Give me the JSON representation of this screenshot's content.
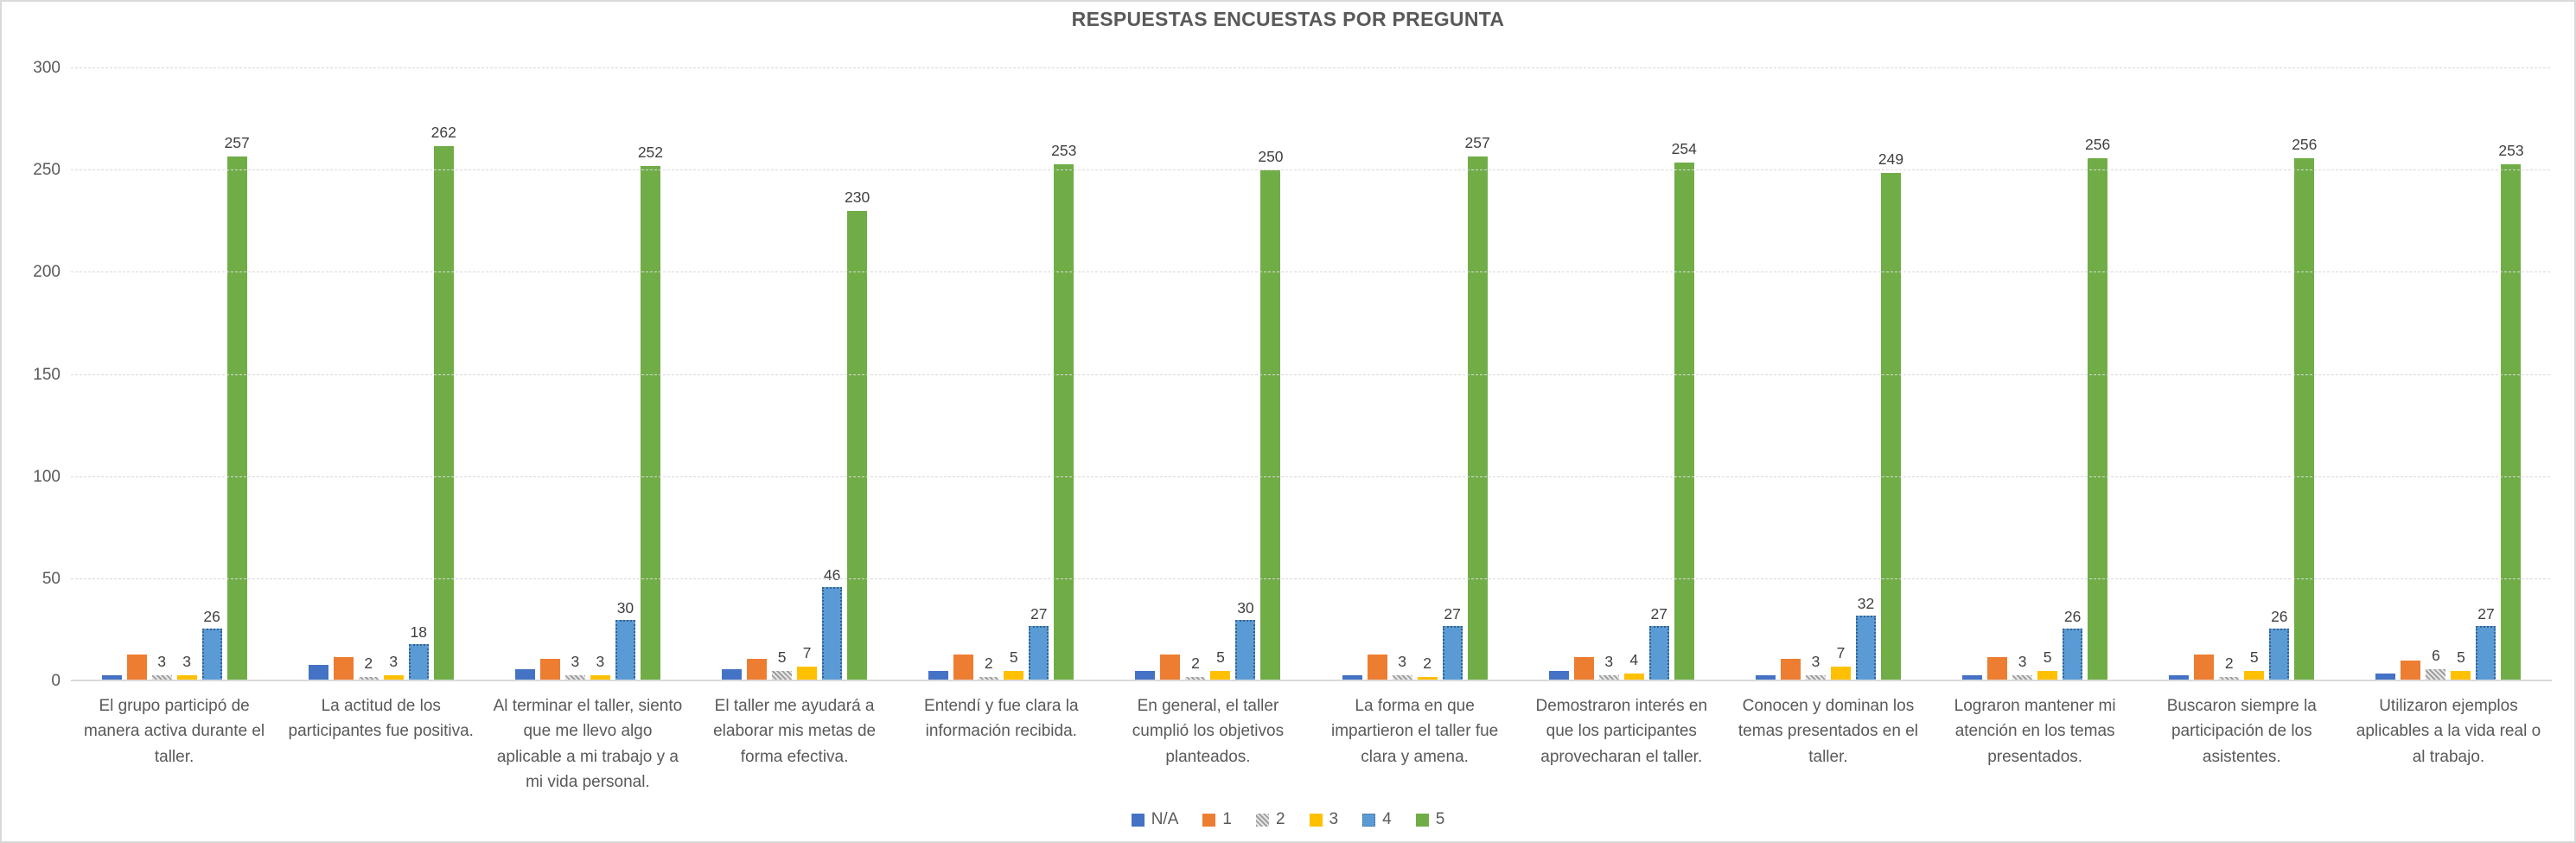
{
  "title": "RESPUESTAS ENCUESTAS POR PREGUNTA",
  "chart_data": {
    "type": "bar",
    "title": "RESPUESTAS ENCUESTAS POR PREGUNTA",
    "grid": "horizontal-dashed",
    "legend_position": "bottom-center",
    "ylim": [
      0,
      300
    ],
    "yticks": [
      0,
      50,
      100,
      150,
      200,
      250,
      300
    ],
    "categories": [
      "El grupo participó de manera activa durante el taller.",
      "La actitud de los participantes fue positiva.",
      "Al terminar el taller, siento que me llevo algo aplicable a mi trabajo y a mi vida personal.",
      "El taller me ayudará a elaborar mis metas de forma efectiva.",
      "Entendí y fue clara la información recibida.",
      "En general, el taller cumplió los objetivos planteados.",
      "La forma en que impartieron el taller fue clara y amena.",
      "Demostraron interés en que los participantes aprovecharan el taller.",
      "Conocen y dominan los temas presentados en el taller.",
      "Lograron mantener mi atención en los temas presentados.",
      "Buscaron siempre la participación de los asistentes.",
      "Utilizaron ejemplos aplicables a la vida real o al trabajo."
    ],
    "series": [
      {
        "name": "N/A",
        "color": "#4472C4",
        "fill": "solid",
        "labels_shown": false,
        "values_estimated": true,
        "values": [
          3,
          8,
          6,
          6,
          5,
          5,
          3,
          5,
          3,
          3,
          3,
          4
        ]
      },
      {
        "name": "1",
        "color": "#ED7D31",
        "fill": "solid",
        "labels_shown": false,
        "values_estimated": true,
        "values": [
          13,
          12,
          11,
          11,
          13,
          13,
          13,
          12,
          11,
          12,
          13,
          10
        ]
      },
      {
        "name": "2",
        "color": "#A5A5A5",
        "fill": "diagonal-hatch",
        "labels_shown": true,
        "values": [
          3,
          2,
          3,
          5,
          2,
          2,
          3,
          3,
          3,
          3,
          2,
          6
        ]
      },
      {
        "name": "3",
        "color": "#FFC000",
        "fill": "solid",
        "labels_shown": true,
        "values": [
          3,
          3,
          3,
          7,
          5,
          5,
          2,
          4,
          7,
          5,
          5,
          5
        ]
      },
      {
        "name": "4",
        "color": "#5B9BD5",
        "fill": "dotted-outline",
        "labels_shown": true,
        "values": [
          26,
          18,
          30,
          46,
          27,
          30,
          27,
          27,
          32,
          26,
          26,
          27
        ]
      },
      {
        "name": "5",
        "color": "#70AD47",
        "fill": "solid",
        "labels_shown": true,
        "values": [
          257,
          262,
          252,
          230,
          253,
          250,
          257,
          254,
          249,
          256,
          256,
          253
        ]
      }
    ],
    "colors": {
      "title_text": "#595959",
      "axis_text": "#595959",
      "data_label_text": "#404040",
      "gridline": "#D9D9D9",
      "frame_border": "#D9D9D9",
      "background": "#FFFFFF"
    }
  }
}
